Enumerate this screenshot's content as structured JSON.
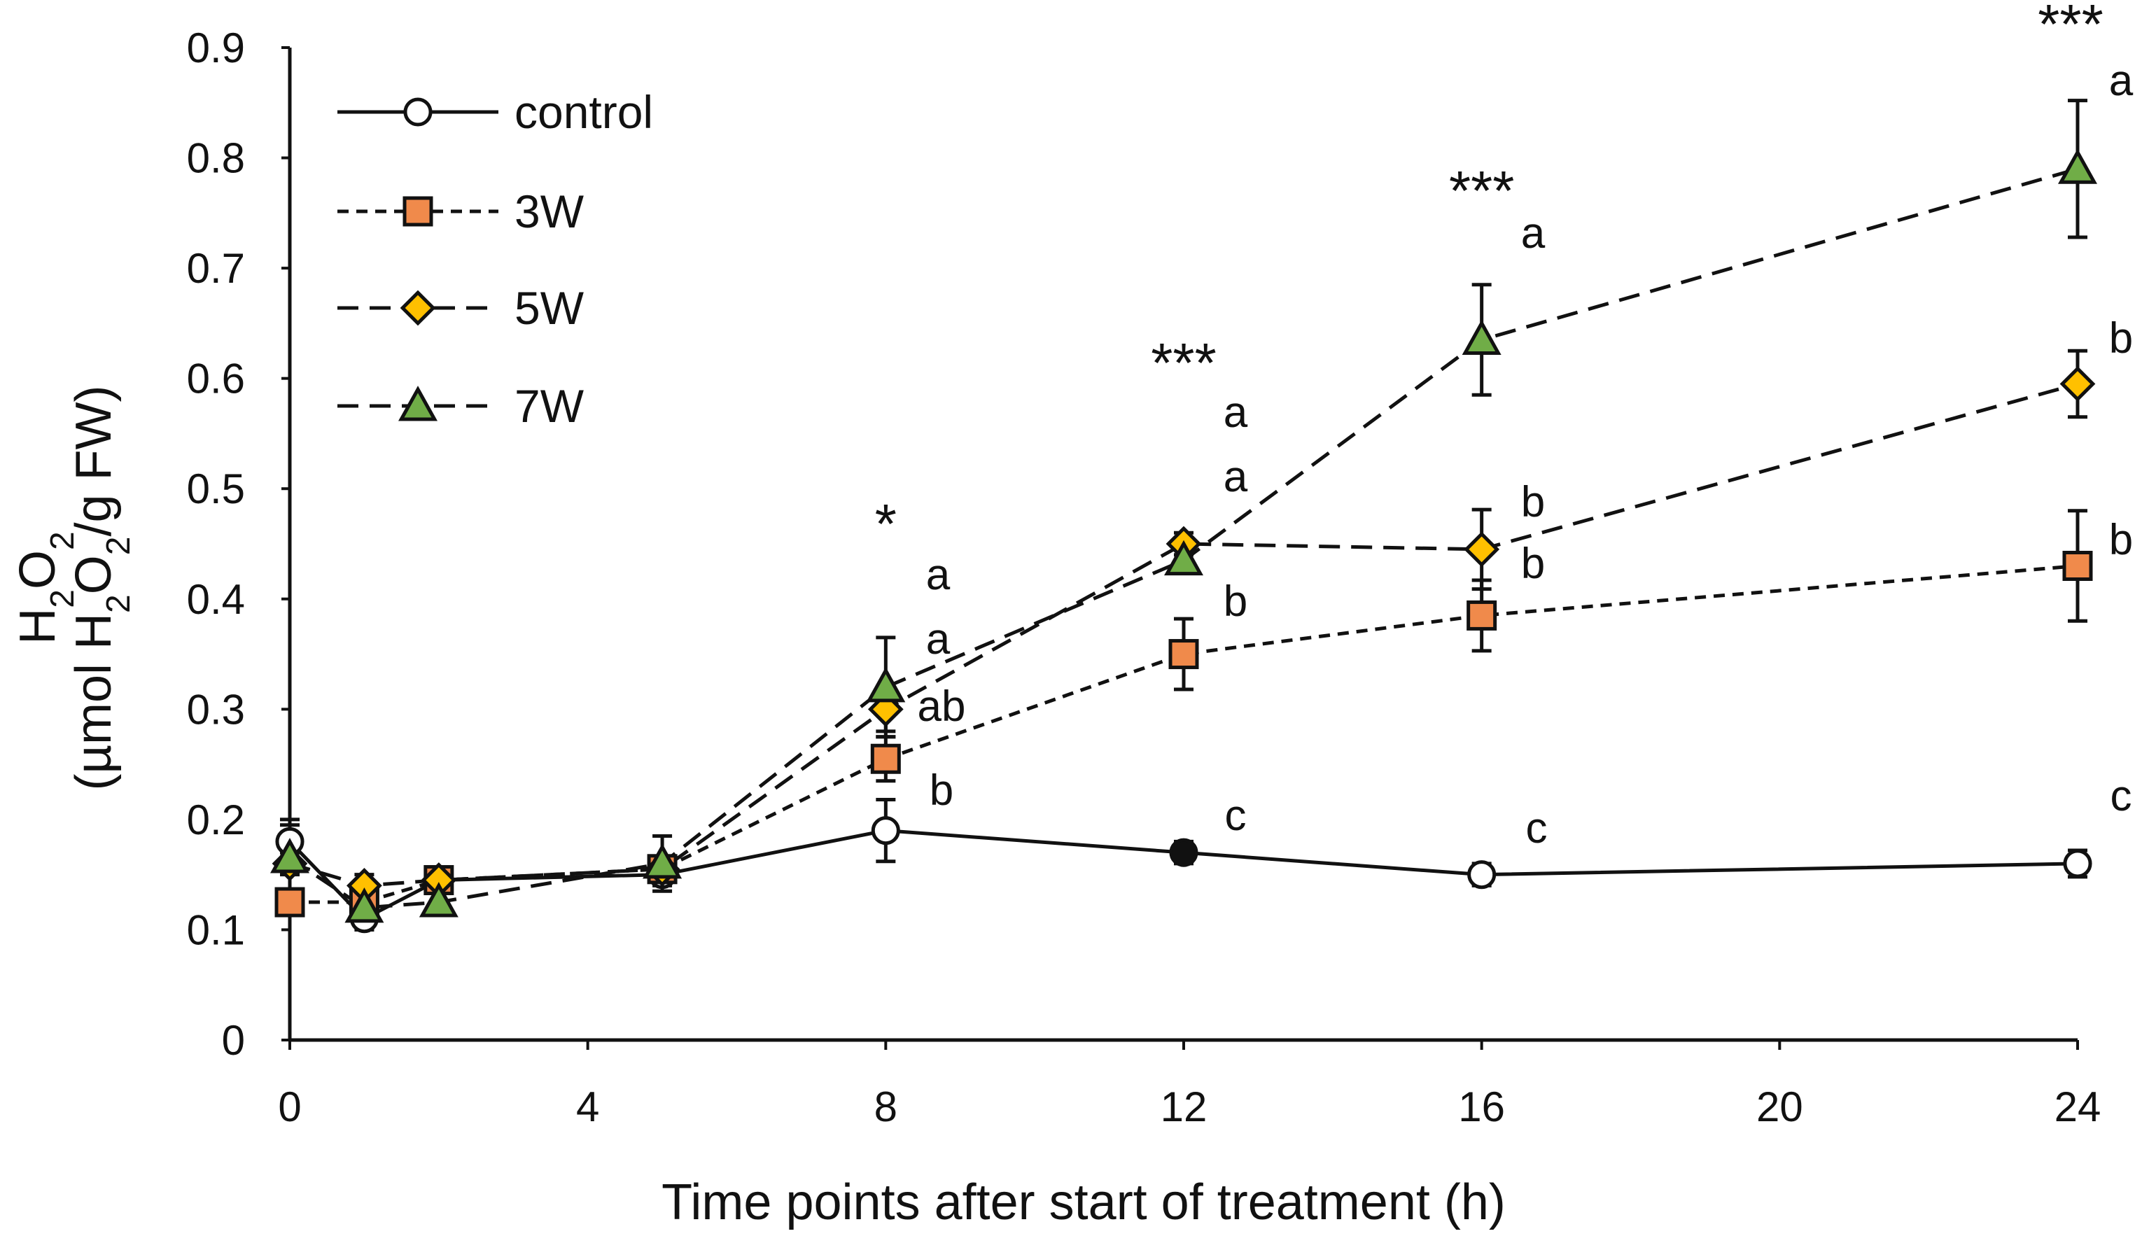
{
  "chart_data": {
    "type": "line",
    "title": "",
    "xlabel": "Time points after start of treatment (h)",
    "ylabel": {
      "line1": {
        "base1": "H",
        "sub1": "2",
        "base2": "O",
        "sub2": "2"
      },
      "line2": {
        "p1": "(µmol H",
        "s1": "2",
        "p2": "O",
        "s2": "2",
        "p3": "/g FW)"
      }
    },
    "xlim": [
      0,
      24
    ],
    "ylim": [
      0,
      0.9
    ],
    "x_ticks": [
      "0",
      "4",
      "8",
      "12",
      "16",
      "20",
      "24"
    ],
    "y_ticks": [
      "0",
      "0.1",
      "0.2",
      "0.3",
      "0.4",
      "0.5",
      "0.6",
      "0.7",
      "0.8",
      "0.9"
    ],
    "x_tick_values": [
      0,
      4,
      8,
      12,
      16,
      20,
      24
    ],
    "y_tick_values": [
      0,
      0.1,
      0.2,
      0.3,
      0.4,
      0.5,
      0.6,
      0.7,
      0.8,
      0.9
    ],
    "x": [
      0,
      1,
      2,
      5,
      8,
      12,
      16,
      24
    ],
    "series": [
      {
        "name": "control",
        "marker": "circle",
        "line": "solid",
        "color": "#ffffff",
        "values": [
          0.18,
          0.11,
          0.145,
          0.15,
          0.19,
          0.17,
          0.15,
          0.16
        ],
        "errors": [
          0.02,
          0.01,
          0.01,
          0.01,
          0.028,
          0.01,
          0.01,
          0.012
        ]
      },
      {
        "name": "3W",
        "marker": "square",
        "line": "short-dash",
        "color": "#f08a4b",
        "values": [
          0.125,
          0.125,
          0.145,
          0.155,
          0.255,
          0.35,
          0.385,
          0.43
        ],
        "errors": [
          0.01,
          0.01,
          0.01,
          0.01,
          0.02,
          0.032,
          0.032,
          0.05
        ]
      },
      {
        "name": "5W",
        "marker": "diamond",
        "line": "long-dash",
        "color": "#ffc000",
        "values": [
          0.16,
          0.14,
          0.145,
          0.155,
          0.3,
          0.45,
          0.445,
          0.595
        ],
        "errors": [
          0.01,
          0.01,
          0.01,
          0.01,
          0.02,
          0.01,
          0.036,
          0.03
        ]
      },
      {
        "name": "7W",
        "marker": "triangle",
        "line": "long-dash",
        "color": "#70ad47",
        "values": [
          0.165,
          0.12,
          0.125,
          0.16,
          0.32,
          0.435,
          0.635,
          0.79
        ],
        "errors": [
          0.03,
          0.015,
          0.01,
          0.025,
          0.045,
          0.01,
          0.05,
          0.062
        ]
      }
    ],
    "significance": [
      {
        "x": 8,
        "stars": "*"
      },
      {
        "x": 12,
        "stars": "***"
      },
      {
        "x": 16,
        "stars": "***"
      },
      {
        "x": 24,
        "stars": "***"
      }
    ],
    "letters": [
      {
        "x": 8,
        "labels": [
          "a",
          "a",
          "ab",
          "b"
        ]
      },
      {
        "x": 12,
        "labels": [
          "a",
          "a",
          "b",
          "c"
        ]
      },
      {
        "x": 16,
        "labels": [
          "a",
          "b",
          "b",
          "c"
        ]
      },
      {
        "x": 24,
        "labels": [
          "a",
          "b",
          "b",
          "c"
        ]
      }
    ],
    "legend_position": "top-left",
    "grid": false
  }
}
